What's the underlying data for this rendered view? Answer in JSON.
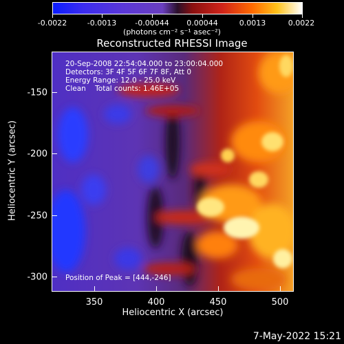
{
  "colorbar": {
    "tick_labels": [
      "-0.0022",
      "-0.0013",
      "-0.00044",
      "0.00044",
      "0.0013",
      "0.0022"
    ],
    "unit_label": "(photons cm⁻² s⁻¹ asec⁻²)"
  },
  "title": "Reconstructed RHESSI Image",
  "info": {
    "line1": "20-Sep-2008 22:54:04.000 to 23:00:04.000",
    "line2": "Detectors: 3F 4F 5F 6F 7F 8F, Att 0",
    "line3": "Energy Range: 12.0 - 25.0 keV",
    "line4": "Clean    Total counts: 1.46E+05",
    "peak": "Position of Peak = [444,-246]"
  },
  "axes": {
    "y_ticks": [
      "-150",
      "-200",
      "-250",
      "-300"
    ],
    "x_ticks": [
      "350",
      "400",
      "450",
      "500"
    ],
    "y_title": "Heliocentric Y (arcsec)",
    "x_title": "Heliocentric X (arcsec)"
  },
  "timestamp": "7-May-2022 15:21"
}
